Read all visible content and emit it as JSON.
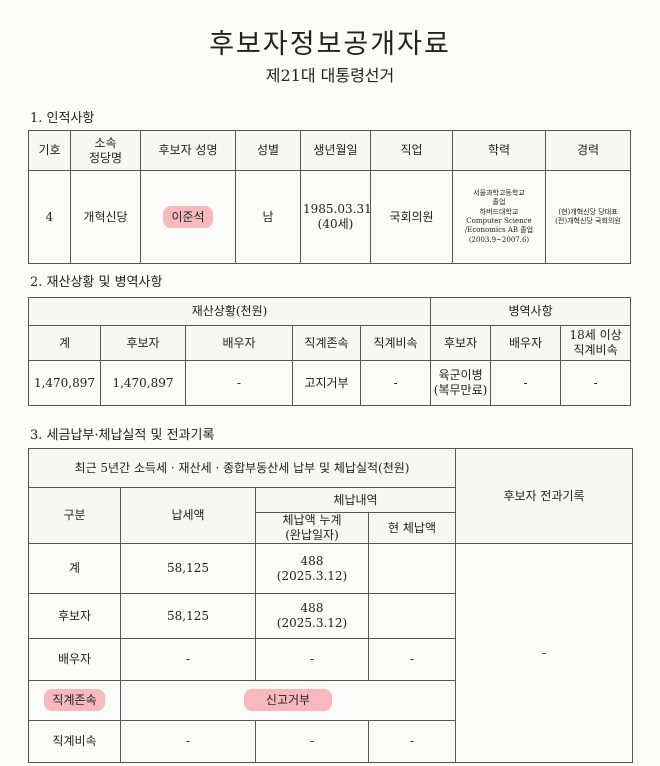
{
  "header": {
    "title": "후보자정보공개자료",
    "subtitle": "제21대 대통령선거"
  },
  "section1": {
    "label": "1. 인적사항",
    "headers": [
      "기호",
      "소속\n정당명",
      "후보자 성명",
      "성별",
      "생년월일",
      "직업",
      "학력",
      "경력"
    ],
    "row": {
      "number": "4",
      "party": "개혁신당",
      "name": "이준석",
      "gender": "남",
      "birth": "1985.03.31",
      "age": "(40세)",
      "job": "국회의원",
      "education": [
        "서울과학고등학교",
        "졸업",
        "하버드대학교",
        "Computer Science",
        "/Economics AB 졸업",
        "(2003.9~2007.6)"
      ],
      "career": [
        "(현)개혁신당 당대표",
        "(전)개혁신당 국회의원"
      ]
    }
  },
  "section2": {
    "label": "2. 재산상황 및 병역사항",
    "group_property": "재산상황(천원)",
    "group_military": "병역사항",
    "headers": [
      "계",
      "후보자",
      "배우자",
      "직계존속",
      "직계비속",
      "후보자",
      "배우자",
      "18세 이상\n직계비속"
    ],
    "row": [
      "1,470,897",
      "1,470,897",
      "-",
      "고지거부",
      "-",
      "육군이병\n(복무만료)",
      "-",
      "-"
    ]
  },
  "section3": {
    "label": "3. 세금납부·체납실적 및 전과기록",
    "tax_title": "최근 5년간 소득세 · 재산세 · 종합부동산세 납부 및 체납실적(천원)",
    "criminal_header": "후보자 전과기록",
    "criminal_value": "-",
    "headers": {
      "category": "구분",
      "paid": "납세액",
      "arrears": "체납내역",
      "arrears_total": "체납액 누계\n(완납일자)",
      "arrears_current": "현 체납액"
    },
    "rows": [
      {
        "category": "계",
        "paid": "58,125",
        "arrears_total": "488\n(2025.3.12)",
        "arrears_current": ""
      },
      {
        "category": "후보자",
        "paid": "58,125",
        "arrears_total": "488\n(2025.3.12)",
        "arrears_current": ""
      },
      {
        "category": "배우자",
        "paid": "-",
        "arrears_total": "-",
        "arrears_current": "-"
      },
      {
        "category": "직계존속",
        "merged": "신고거부"
      },
      {
        "category": "직계비속",
        "paid": "-",
        "arrears_total": "-",
        "arrears_current": "-"
      }
    ]
  },
  "colors": {
    "highlight": "#f7b9bd"
  }
}
